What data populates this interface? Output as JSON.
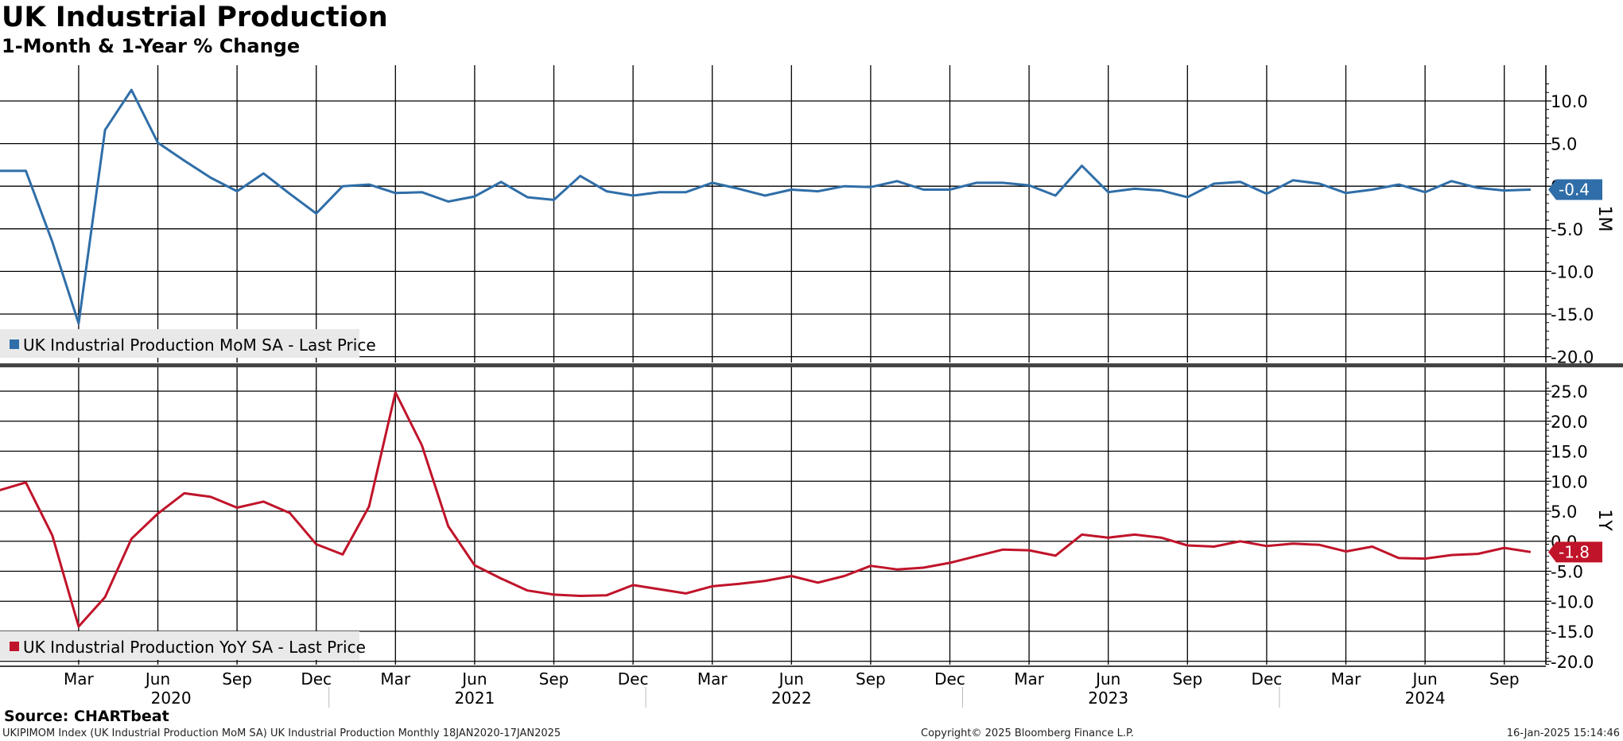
{
  "title": "UK Industrial Production",
  "subtitle": "1-Month & 1-Year % Change",
  "source": "Source: CHARTbeat",
  "footer": {
    "left": "UKIPIMOM Index (UK Industrial Production MoM SA) UK Industrial Production  Monthly 18JAN2020-17JAN2025",
    "center": "Copyright© 2025 Bloomberg Finance L.P.",
    "right": "16-Jan-2025 15:14:46"
  },
  "colors": {
    "mom": "#2f6ea8",
    "yoy": "#c0142a",
    "grid": "#000000"
  },
  "chart_data": [
    {
      "type": "line",
      "panel_label": "1M",
      "ylim": [
        -20,
        12.5
      ],
      "yticks": [
        10,
        5,
        0,
        -5,
        -10,
        -15,
        -20
      ],
      "ytick_labels": [
        "10.0",
        "5.0",
        "0.0",
        "-5.0",
        "-10.0",
        "-15.0",
        "-20.0"
      ],
      "grid": true,
      "legend": "bottom-left",
      "x_start": "2020-01",
      "series": [
        {
          "name": "UK Industrial Production MoM SA - Last Price",
          "last_label": "-0.4",
          "values": [
            1.8,
            1.8,
            -6.5,
            -16.1,
            6.6,
            11.3,
            5.1,
            3.0,
            1.0,
            -0.6,
            1.5,
            -0.9,
            -3.2,
            0.0,
            0.2,
            -0.8,
            -0.7,
            -1.8,
            -1.2,
            0.5,
            -1.3,
            -1.6,
            1.2,
            -0.6,
            -1.1,
            -0.7,
            -0.7,
            0.4,
            -0.3,
            -1.1,
            -0.4,
            -0.6,
            0.0,
            -0.1,
            0.6,
            -0.4,
            -0.4,
            0.4,
            0.4,
            0.1,
            -1.1,
            2.4,
            -0.7,
            -0.3,
            -0.5,
            -1.3,
            0.3,
            0.5,
            -0.9,
            0.7,
            0.3,
            -0.8,
            -0.4,
            0.2,
            -0.7,
            0.6,
            -0.2,
            -0.5,
            -0.4
          ]
        }
      ]
    },
    {
      "type": "line",
      "panel_label": "1Y",
      "ylim": [
        -20.5,
        27
      ],
      "yticks": [
        25,
        20,
        15,
        10,
        5,
        0,
        -5,
        -10,
        -15,
        -20
      ],
      "ytick_labels": [
        "25.0",
        "20.0",
        "15.0",
        "10.0",
        "5.0",
        "0.0",
        "-5.0",
        "-10.0",
        "-15.0",
        "-20.0"
      ],
      "grid": true,
      "legend": "bottom-left",
      "x_start": "2020-01",
      "series": [
        {
          "name": "UK Industrial Production YoY SA - Last Price",
          "last_label": "-1.8",
          "values": [
            8.5,
            9.8,
            1.0,
            -14.2,
            -9.3,
            0.4,
            4.6,
            8.0,
            7.4,
            5.6,
            6.6,
            4.7,
            -0.5,
            -2.2,
            5.8,
            24.8,
            16.0,
            2.5,
            -4.0,
            -6.2,
            -8.2,
            -8.9,
            -9.1,
            -9.0,
            -7.3,
            -8.0,
            -8.7,
            -7.5,
            -7.1,
            -6.6,
            -5.8,
            -6.9,
            -5.8,
            -4.1,
            -4.7,
            -4.4,
            -3.6,
            -2.5,
            -1.4,
            -1.5,
            -2.4,
            1.1,
            0.6,
            1.1,
            0.6,
            -0.7,
            -0.9,
            0.0,
            -0.8,
            -0.4,
            -0.6,
            -1.7,
            -0.9,
            -2.8,
            -2.9,
            -2.3,
            -2.1,
            -1.1,
            -1.8
          ]
        }
      ]
    }
  ],
  "x_axis": {
    "month_labels": [
      {
        "label": "Mar",
        "t": 2
      },
      {
        "label": "Jun",
        "t": 5
      },
      {
        "label": "Sep",
        "t": 8
      },
      {
        "label": "Dec",
        "t": 11
      },
      {
        "label": "Mar",
        "t": 14
      },
      {
        "label": "Jun",
        "t": 17
      },
      {
        "label": "Sep",
        "t": 20
      },
      {
        "label": "Dec",
        "t": 23
      },
      {
        "label": "Mar",
        "t": 26
      },
      {
        "label": "Jun",
        "t": 29
      },
      {
        "label": "Sep",
        "t": 32
      },
      {
        "label": "Dec",
        "t": 35
      },
      {
        "label": "Mar",
        "t": 38
      },
      {
        "label": "Jun",
        "t": 41
      },
      {
        "label": "Sep",
        "t": 44
      },
      {
        "label": "Dec",
        "t": 47
      },
      {
        "label": "Mar",
        "t": 50
      },
      {
        "label": "Jun",
        "t": 53
      },
      {
        "label": "Sep",
        "t": 56
      }
    ],
    "year_labels": [
      {
        "label": "2020",
        "t": 5.5
      },
      {
        "label": "2021",
        "t": 17
      },
      {
        "label": "2022",
        "t": 29
      },
      {
        "label": "2023",
        "t": 41
      },
      {
        "label": "2024",
        "t": 53
      }
    ],
    "year_dividers": [
      11,
      23,
      35,
      47
    ]
  }
}
